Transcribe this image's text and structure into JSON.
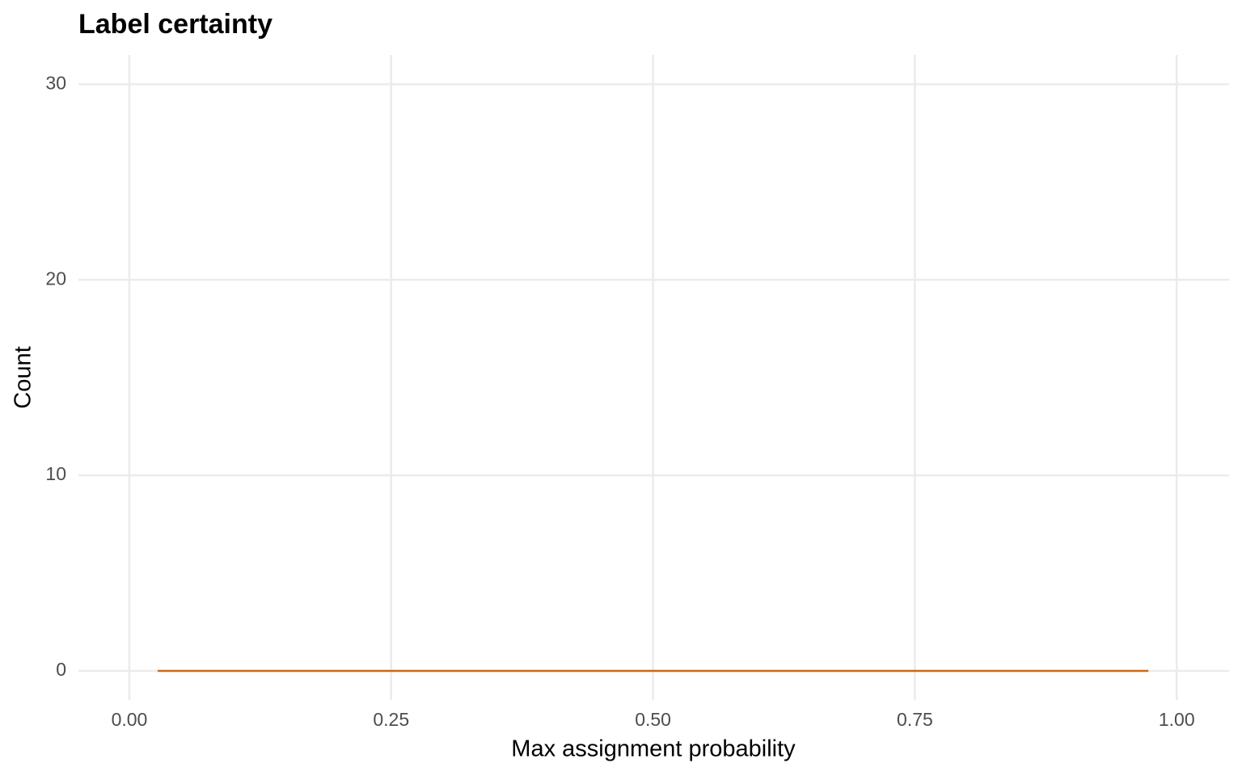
{
  "chart_data": {
    "type": "histogram",
    "title": "Label certainty",
    "x_label": "Max assignment probability",
    "y_label": "Count",
    "bins": [
      0.027,
      0.973
    ],
    "counts": [
      0
    ],
    "color": "#cc6a14",
    "xlim": [
      -0.0486,
      1.05
    ],
    "ylim": [
      -1.49,
      31.5
    ],
    "xticks": [
      {
        "value": 0,
        "label": "0.00"
      },
      0.25,
      {
        "value": 0.5,
        "label": "0.50"
      },
      0.75,
      {
        "value": 1,
        "label": "1.00"
      }
    ],
    "yticks": [
      0,
      10,
      20,
      30
    ],
    "grid": true
  }
}
